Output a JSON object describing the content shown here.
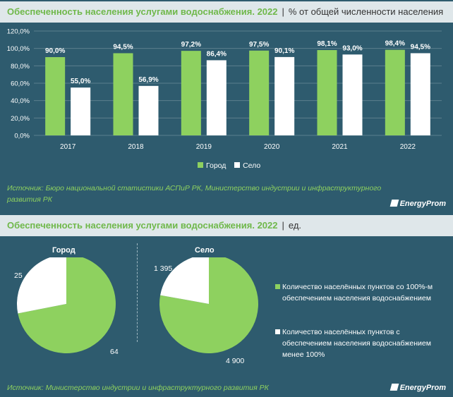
{
  "section1": {
    "title": "Обеспеченность населения услугами водоснабжения. 2022",
    "separator": "|",
    "unit": "% от общей численности населения",
    "source": "Источник: Бюро национальной статистики АСПиР РК, Министерство индустрии и инфраструктурного развития РК",
    "logo": "EnergyProm"
  },
  "section2": {
    "title": "Обеспеченность населения услугами водоснабжения. 2022",
    "separator": "|",
    "unit": "ед.",
    "source": "Источник: Министерство индустрии и инфраструктурного развития РК",
    "logo": "EnergyProm",
    "pie_city_label": "Город",
    "pie_village_label": "Село",
    "city_value_full": "64",
    "city_value_partial": "25",
    "village_value_full": "4 900",
    "village_value_partial": "1 395",
    "legend_full": "Количество населённых пунктов со 100%-м обеспечением населения водоснабжением",
    "legend_partial": "Количество населённых пунктов с обеспечением населения водоснабжением менее 100%"
  },
  "colors": {
    "green": "#8ed15f",
    "white": "#ffffff",
    "background": "#2e5b6e",
    "title_green": "#6fb84a"
  },
  "chart_data": [
    {
      "type": "bar",
      "categories": [
        "2017",
        "2018",
        "2019",
        "2020",
        "2021",
        "2022"
      ],
      "series": [
        {
          "name": "Город",
          "values": [
            90.0,
            94.5,
            97.2,
            97.5,
            98.1,
            98.4
          ],
          "color": "#8ed15f",
          "labels": [
            "90,0%",
            "94,5%",
            "97,2%",
            "97,5%",
            "98,1%",
            "98,4%"
          ]
        },
        {
          "name": "Село",
          "values": [
            55.0,
            56.9,
            86.4,
            90.1,
            93.0,
            94.5
          ],
          "color": "#ffffff",
          "labels": [
            "55,0%",
            "56,9%",
            "86,4%",
            "90,1%",
            "93,0%",
            "94,5%"
          ]
        }
      ],
      "ylim": [
        0,
        120
      ],
      "yticks": [
        "0,0%",
        "20,0%",
        "40,0%",
        "60,0%",
        "80,0%",
        "100,0%",
        "120,0%"
      ],
      "legend": "bottom"
    },
    {
      "type": "pie",
      "title": "Город",
      "labels": [
        "Количество населённых пунктов со 100%-м обеспечением населения водоснабжением",
        "Количество населённых пунктов с обеспечением населения водоснабжением менее 100%"
      ],
      "values": [
        64,
        25
      ]
    },
    {
      "type": "pie",
      "title": "Село",
      "labels": [
        "Количество населённых пунктов со 100%-м обеспечением населения водоснабжением",
        "Количество населённых пунктов с обеспечением населения водоснабжением менее 100%"
      ],
      "values": [
        4900,
        1395
      ]
    }
  ]
}
